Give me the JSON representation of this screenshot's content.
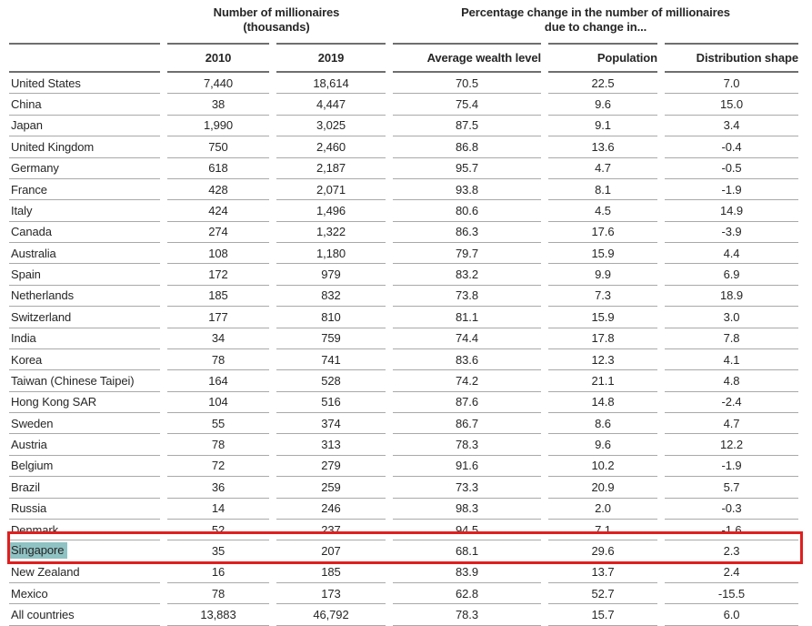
{
  "table": {
    "group_headers": {
      "millionaires": {
        "line1": "Number of  millionaires",
        "line2": "(thousands)"
      },
      "pct_change": {
        "line1": "Percentage change in the number of millionaires",
        "line2": "due to change in..."
      }
    },
    "columns": [
      "",
      "2010",
      "2019",
      "Average wealth level",
      "Population",
      "Distribution shape"
    ],
    "rows": [
      {
        "country": "United States",
        "y2010": "7,440",
        "y2019": "18,614",
        "avg_wealth": "70.5",
        "population": "22.5",
        "distribution": "7.0",
        "highlighted": false
      },
      {
        "country": "China",
        "y2010": "38",
        "y2019": "4,447",
        "avg_wealth": "75.4",
        "population": "9.6",
        "distribution": "15.0",
        "highlighted": false
      },
      {
        "country": "Japan",
        "y2010": "1,990",
        "y2019": "3,025",
        "avg_wealth": "87.5",
        "population": "9.1",
        "distribution": "3.4",
        "highlighted": false
      },
      {
        "country": "United Kingdom",
        "y2010": "750",
        "y2019": "2,460",
        "avg_wealth": "86.8",
        "population": "13.6",
        "distribution": "-0.4",
        "highlighted": false
      },
      {
        "country": "Germany",
        "y2010": "618",
        "y2019": "2,187",
        "avg_wealth": "95.7",
        "population": "4.7",
        "distribution": "-0.5",
        "highlighted": false
      },
      {
        "country": "France",
        "y2010": "428",
        "y2019": "2,071",
        "avg_wealth": "93.8",
        "population": "8.1",
        "distribution": "-1.9",
        "highlighted": false
      },
      {
        "country": "Italy",
        "y2010": "424",
        "y2019": "1,496",
        "avg_wealth": "80.6",
        "population": "4.5",
        "distribution": "14.9",
        "highlighted": false
      },
      {
        "country": "Canada",
        "y2010": "274",
        "y2019": "1,322",
        "avg_wealth": "86.3",
        "population": "17.6",
        "distribution": "-3.9",
        "highlighted": false
      },
      {
        "country": "Australia",
        "y2010": "108",
        "y2019": "1,180",
        "avg_wealth": "79.7",
        "population": "15.9",
        "distribution": "4.4",
        "highlighted": false
      },
      {
        "country": "Spain",
        "y2010": "172",
        "y2019": "979",
        "avg_wealth": "83.2",
        "population": "9.9",
        "distribution": "6.9",
        "highlighted": false
      },
      {
        "country": "Netherlands",
        "y2010": "185",
        "y2019": "832",
        "avg_wealth": "73.8",
        "population": "7.3",
        "distribution": "18.9",
        "highlighted": false
      },
      {
        "country": "Switzerland",
        "y2010": "177",
        "y2019": "810",
        "avg_wealth": "81.1",
        "population": "15.9",
        "distribution": "3.0",
        "highlighted": false
      },
      {
        "country": "India",
        "y2010": "34",
        "y2019": "759",
        "avg_wealth": "74.4",
        "population": "17.8",
        "distribution": "7.8",
        "highlighted": false
      },
      {
        "country": "Korea",
        "y2010": "78",
        "y2019": "741",
        "avg_wealth": "83.6",
        "population": "12.3",
        "distribution": "4.1",
        "highlighted": false
      },
      {
        "country": "Taiwan (Chinese Taipei)",
        "y2010": "164",
        "y2019": "528",
        "avg_wealth": "74.2",
        "population": "21.1",
        "distribution": "4.8",
        "highlighted": false
      },
      {
        "country": "Hong Kong SAR",
        "y2010": "104",
        "y2019": "516",
        "avg_wealth": "87.6",
        "population": "14.8",
        "distribution": "-2.4",
        "highlighted": false
      },
      {
        "country": "Sweden",
        "y2010": "55",
        "y2019": "374",
        "avg_wealth": "86.7",
        "population": "8.6",
        "distribution": "4.7",
        "highlighted": false
      },
      {
        "country": "Austria",
        "y2010": "78",
        "y2019": "313",
        "avg_wealth": "78.3",
        "population": "9.6",
        "distribution": "12.2",
        "highlighted": false
      },
      {
        "country": "Belgium",
        "y2010": "72",
        "y2019": "279",
        "avg_wealth": "91.6",
        "population": "10.2",
        "distribution": "-1.9",
        "highlighted": false
      },
      {
        "country": "Brazil",
        "y2010": "36",
        "y2019": "259",
        "avg_wealth": "73.3",
        "population": "20.9",
        "distribution": "5.7",
        "highlighted": false
      },
      {
        "country": "Russia",
        "y2010": "14",
        "y2019": "246",
        "avg_wealth": "98.3",
        "population": "2.0",
        "distribution": "-0.3",
        "highlighted": false
      },
      {
        "country": "Denmark",
        "y2010": "52",
        "y2019": "237",
        "avg_wealth": "94.5",
        "population": "7.1",
        "distribution": "-1.6",
        "highlighted": false
      },
      {
        "country": "Singapore",
        "y2010": "35",
        "y2019": "207",
        "avg_wealth": "68.1",
        "population": "29.6",
        "distribution": "2.3",
        "highlighted": true
      },
      {
        "country": "New Zealand",
        "y2010": "16",
        "y2019": "185",
        "avg_wealth": "83.9",
        "population": "13.7",
        "distribution": "2.4",
        "highlighted": false
      },
      {
        "country": "Mexico",
        "y2010": "78",
        "y2019": "173",
        "avg_wealth": "62.8",
        "population": "52.7",
        "distribution": "-15.5",
        "highlighted": false
      },
      {
        "country": "All countries",
        "y2010": "13,883",
        "y2019": "46,792",
        "avg_wealth": "78.3",
        "population": "15.7",
        "distribution": "6.0",
        "highlighted": false
      }
    ]
  },
  "annotations": {
    "highlighted_row": "Singapore",
    "highlight_color": "#8fc2c3",
    "box_color": "#e01e1e"
  }
}
